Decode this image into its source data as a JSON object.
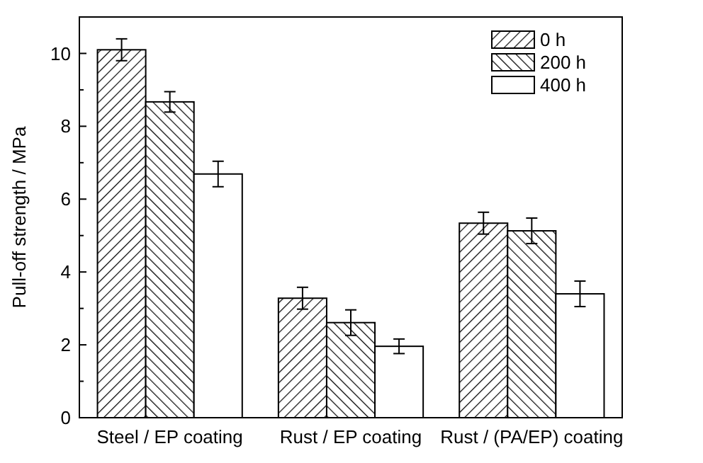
{
  "chart_data": {
    "type": "bar",
    "ylabel": "Pull-off strength / MPa",
    "categories": [
      "Steel / EP coating",
      "Rust / EP coating",
      "Rust / (PA/EP) coating"
    ],
    "series": [
      {
        "name": "0 h",
        "color": "#000000",
        "values": [
          10.1,
          3.28,
          5.34
        ],
        "errors": [
          0.3,
          0.3,
          0.3
        ]
      },
      {
        "name": "200 h",
        "color": "#000000",
        "values": [
          8.67,
          2.61,
          5.13
        ],
        "errors": [
          0.28,
          0.35,
          0.35
        ]
      },
      {
        "name": "400 h",
        "color": "#ffffff",
        "values": [
          6.69,
          1.96,
          3.4
        ],
        "errors": [
          0.35,
          0.2,
          0.35
        ]
      }
    ],
    "ylim": [
      0,
      11
    ],
    "yticks": [
      0,
      {
        "value": 1,
        "label": null
      },
      2,
      {
        "value": 3,
        "label": null
      },
      4,
      {
        "value": 5,
        "label": null
      },
      6,
      {
        "value": 7,
        "label": null
      },
      8,
      {
        "value": 9,
        "label": null
      },
      10
    ],
    "grid": false,
    "legend": "top right"
  }
}
